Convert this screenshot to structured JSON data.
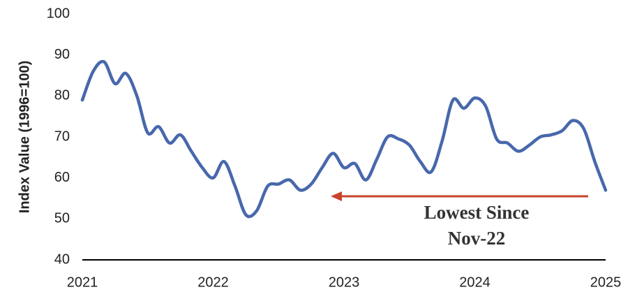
{
  "chart_data": {
    "type": "line",
    "y_label": "Index Value (1996=100)",
    "annotation": [
      "Lowest Since",
      "Nov-22"
    ],
    "x": [
      2021,
      2021.083,
      2021.167,
      2021.25,
      2021.333,
      2021.417,
      2021.5,
      2021.583,
      2021.667,
      2021.75,
      2021.833,
      2021.917,
      2022,
      2022.083,
      2022.167,
      2022.25,
      2022.333,
      2022.417,
      2022.5,
      2022.583,
      2022.667,
      2022.75,
      2022.833,
      2022.917,
      2023,
      2023.083,
      2023.167,
      2023.25,
      2023.333,
      2023.417,
      2023.5,
      2023.583,
      2023.667,
      2023.75,
      2023.833,
      2023.917,
      2024,
      2024.083,
      2024.167,
      2024.25,
      2024.333,
      2024.417,
      2024.5,
      2024.583,
      2024.667,
      2024.75,
      2024.833,
      2024.917,
      2025
    ],
    "series": [
      {
        "name": "Index Value",
        "color": "#4868ac",
        "values": [
          79,
          86,
          88.3,
          83,
          85.5,
          80,
          71,
          72.5,
          68.5,
          70.5,
          66.5,
          62.5,
          60,
          64,
          58,
          51,
          52,
          58,
          58.5,
          59.5,
          57,
          58.5,
          62.5,
          66,
          62.5,
          63.5,
          59.5,
          64.5,
          70,
          69.5,
          68,
          64,
          61.5,
          69,
          79,
          77,
          79.5,
          77.5,
          69.5,
          68.5,
          66.5,
          68,
          70,
          70.5,
          71.5,
          74,
          72,
          64,
          57
        ]
      }
    ],
    "xlim": [
      2021,
      2025
    ],
    "xticks": [
      2021,
      2022,
      2023,
      2024,
      2025
    ],
    "ylim": [
      40,
      100
    ],
    "yticks": [
      40,
      50,
      60,
      70,
      80,
      90,
      100
    ],
    "grid": false
  }
}
